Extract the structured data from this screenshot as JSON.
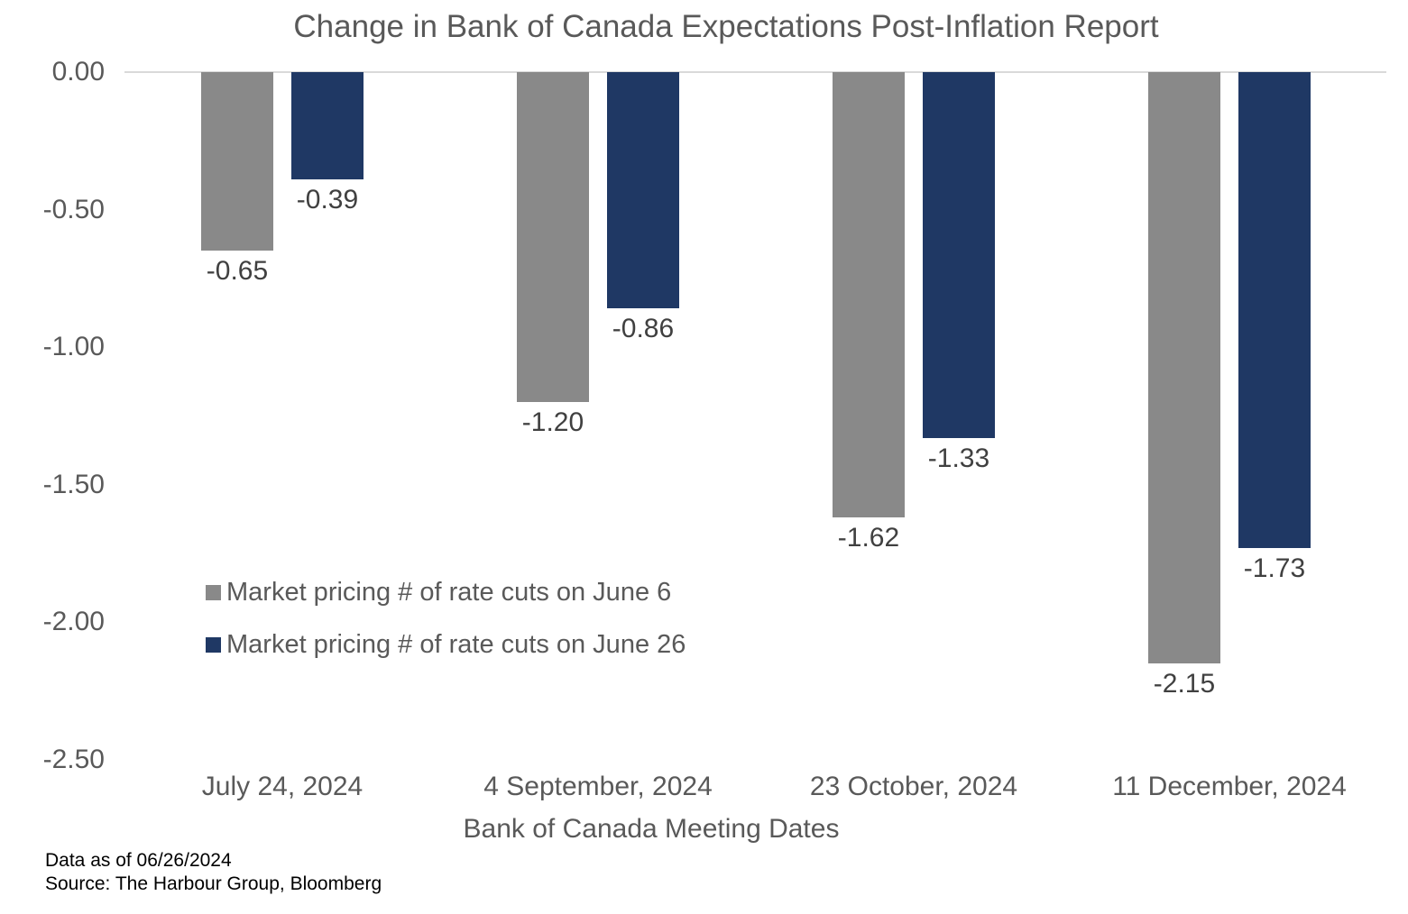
{
  "chart_data": {
    "type": "bar",
    "title": "Change in Bank of Canada Expectations Post-Inflation Report",
    "categories": [
      "July 24, 2024",
      "4 September, 2024",
      "23 October, 2024",
      "11 December, 2024"
    ],
    "series": [
      {
        "name": "Market pricing # of rate cuts on June 6",
        "color": "#898989",
        "values": [
          -0.65,
          -1.2,
          -1.62,
          -2.15
        ],
        "labels": [
          "-0.65",
          "-1.20",
          "-1.62",
          "-2.15"
        ]
      },
      {
        "name": "Market pricing # of rate cuts on June 26",
        "color": "#1F3864",
        "values": [
          -0.39,
          -0.86,
          -1.33,
          -1.73
        ],
        "labels": [
          "-0.39",
          "-0.86",
          "-1.33",
          "-1.73"
        ]
      }
    ],
    "xlabel": "Bank of Canada Meeting Dates",
    "ylabel": "",
    "ylim": [
      -2.5,
      0.0
    ],
    "yticks": {
      "values": [
        0,
        -0.5,
        -1.0,
        -1.5,
        -2.0,
        -2.5
      ],
      "labels": [
        "0.00",
        "-0.50",
        "-1.00",
        "-1.50",
        "-2.00",
        "-2.50"
      ]
    },
    "grid": "zero-line-only",
    "legend_position": "inside-left-middle"
  },
  "footer": {
    "line1": "Data as of 06/26/2024",
    "line2": "Source: The Harbour Group, Bloomberg"
  },
  "colors": {
    "bar_gray": "#898989",
    "bar_navy": "#1F3864",
    "axis_text": "#595959",
    "data_label_text": "#404040",
    "gridline": "#D9D9D9",
    "footer_text": "#000000"
  }
}
